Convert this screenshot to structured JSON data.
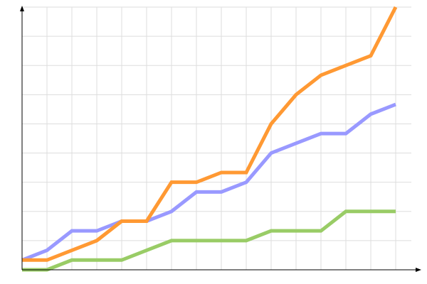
{
  "chart_data": {
    "type": "line",
    "title": "",
    "xlabel": "",
    "ylabel": "",
    "x": [
      0,
      1,
      2,
      3,
      4,
      5,
      6,
      7,
      8,
      9,
      10,
      11,
      12,
      13,
      14,
      15
    ],
    "xlim": [
      0,
      15
    ],
    "ylim": [
      0,
      27
    ],
    "y_grid_step": 3,
    "grid": true,
    "legend": "none",
    "series": [
      {
        "color": "#9999ff",
        "values": [
          1,
          2,
          4,
          4,
          5,
          5,
          6,
          8,
          8,
          9,
          12,
          13,
          14,
          14,
          16,
          17
        ]
      },
      {
        "color": "#ff9933",
        "values": [
          1,
          1,
          2,
          3,
          5,
          5,
          9,
          9,
          10,
          10,
          15,
          18,
          20,
          21,
          22,
          27
        ]
      },
      {
        "color": "#99cc66",
        "values": [
          0,
          0,
          1,
          1,
          1,
          2,
          3,
          3,
          3,
          3,
          4,
          4,
          4,
          6,
          6,
          6
        ]
      }
    ]
  }
}
